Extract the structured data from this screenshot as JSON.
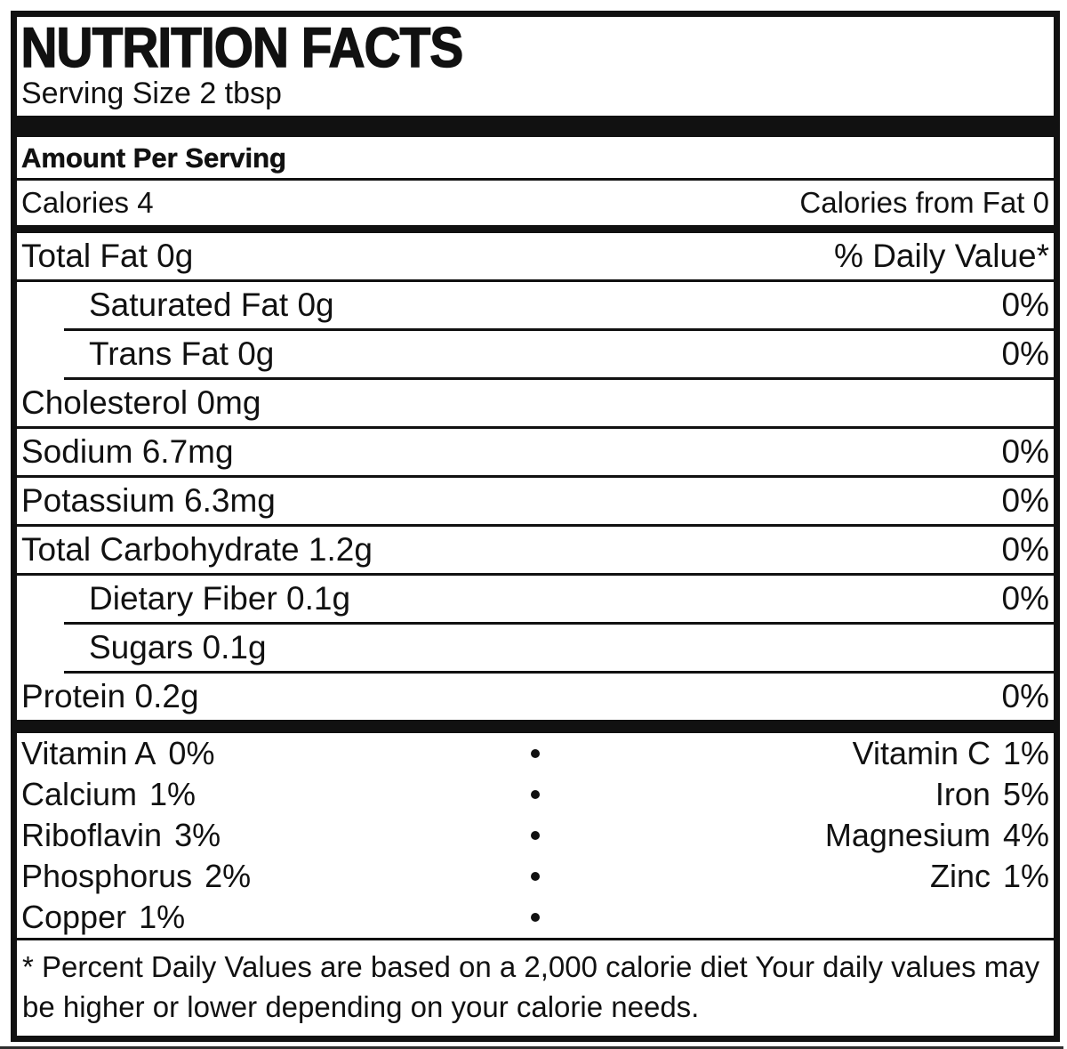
{
  "label": {
    "title": "NUTRITION FACTS",
    "serving_size": "Serving Size 2 tbsp",
    "amount_per_serving": "Amount Per Serving",
    "calories": "Calories 4",
    "calories_from_fat": "Calories from Fat 0",
    "daily_value_header": "% Daily Value*",
    "footnote": "* Percent Daily Values are based on a 2,000 calorie diet Your daily values may be higher or lower depending on your calorie needs.",
    "ink_color": "#111111",
    "background_color": "#ffffff"
  },
  "nutrients": [
    {
      "text": "Total Fat 0g",
      "value": ""
    },
    {
      "text": "Saturated Fat 0g",
      "value": "0%"
    },
    {
      "text": "Trans Fat 0g",
      "value": "0%"
    },
    {
      "text": "Cholesterol 0mg",
      "value": ""
    },
    {
      "text": "Sodium 6.7mg",
      "value": "0%"
    },
    {
      "text": "Potassium 6.3mg",
      "value": "0%"
    },
    {
      "text": "Total Carbohydrate 1.2g",
      "value": "0%"
    },
    {
      "text": "Dietary Fiber 0.1g",
      "value": "0%"
    },
    {
      "text": "Sugars 0.1g",
      "value": ""
    },
    {
      "text": "Protein 0.2g",
      "value": "0%"
    }
  ],
  "vitamins": [
    {
      "left_name": "Vitamin A",
      "left_value": "0%",
      "right_name": "Vitamin C",
      "right_value": "1%"
    },
    {
      "left_name": "Calcium",
      "left_value": "1%",
      "right_name": "Iron",
      "right_value": "5%"
    },
    {
      "left_name": "Riboflavin",
      "left_value": "3%",
      "right_name": "Magnesium",
      "right_value": "4%"
    },
    {
      "left_name": "Phosphorus",
      "left_value": "2%",
      "right_name": "Zinc",
      "right_value": "1%"
    },
    {
      "left_name": "Copper",
      "left_value": "1%",
      "right_name": "",
      "right_value": ""
    }
  ]
}
